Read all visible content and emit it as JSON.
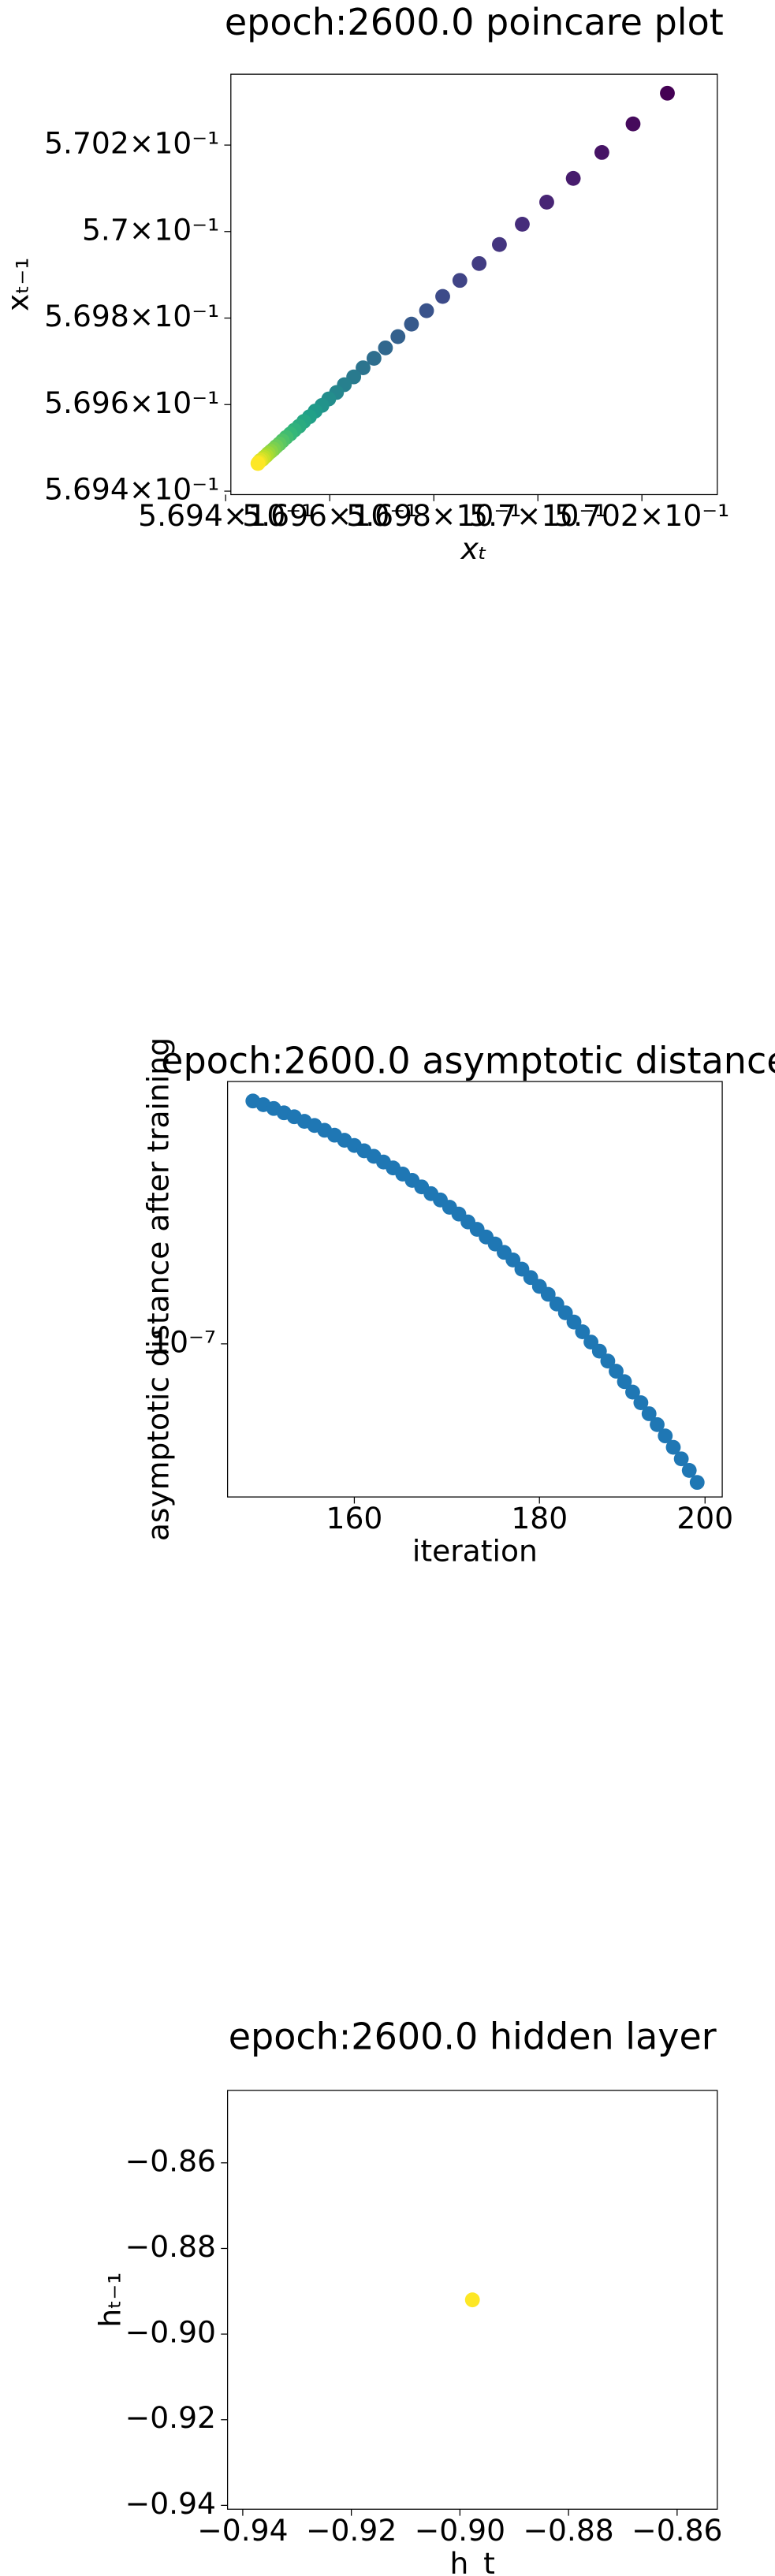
{
  "chart_data": [
    {
      "type": "scatter",
      "title": "epoch:2600.0 poincare plot",
      "xlabel": "xₜ",
      "ylabel": "xₜ₋₁",
      "log_scale": true,
      "colormap": "viridis",
      "x": [
        0.570249,
        0.570183,
        0.570123,
        0.570068,
        0.570017,
        0.56997,
        0.569926,
        0.569887,
        0.56985,
        0.569817,
        0.569786,
        0.569757,
        0.569731,
        0.569707,
        0.569685,
        0.569664,
        0.569646,
        0.569628,
        0.569613,
        0.569598,
        0.569585,
        0.569572,
        0.569561,
        0.56955,
        0.569541,
        0.569532,
        0.569524,
        0.569516,
        0.569509,
        0.569503,
        0.569497,
        0.569492,
        0.569487,
        0.569482,
        0.569478,
        0.569474,
        0.569471,
        0.569467,
        0.569464,
        0.569462
      ],
      "y": [
        0.57032,
        0.570249,
        0.570183,
        0.570123,
        0.570068,
        0.570017,
        0.56997,
        0.569926,
        0.569887,
        0.56985,
        0.569817,
        0.569786,
        0.569757,
        0.569731,
        0.569707,
        0.569685,
        0.569664,
        0.569646,
        0.569628,
        0.569613,
        0.569598,
        0.569585,
        0.569572,
        0.569561,
        0.56955,
        0.569541,
        0.569532,
        0.569524,
        0.569516,
        0.569509,
        0.569503,
        0.569497,
        0.569492,
        0.569487,
        0.569482,
        0.569478,
        0.569474,
        0.569471,
        0.569467,
        0.569464
      ],
      "xlim": [
        0.56941,
        0.570345
      ],
      "ylim": [
        0.569392,
        0.570364
      ],
      "xticks": [
        {
          "value": 0.5694,
          "label": "5.694×10⁻¹"
        },
        {
          "value": 0.5696,
          "label": "5.696×10⁻¹"
        },
        {
          "value": 0.5698,
          "label": "5.698×10⁻¹"
        },
        {
          "value": 0.57,
          "label": "5.7×10⁻¹"
        },
        {
          "value": 0.5702,
          "label": "5.702×10⁻¹"
        }
      ],
      "yticks": [
        {
          "value": 0.5694,
          "label": "5.694×10⁻¹"
        },
        {
          "value": 0.5696,
          "label": "5.696×10⁻¹"
        },
        {
          "value": 0.5698,
          "label": "5.698×10⁻¹"
        },
        {
          "value": 0.57,
          "label": "5.7×10⁻¹"
        },
        {
          "value": 0.5702,
          "label": "5.702×10⁻¹"
        }
      ]
    },
    {
      "type": "scatter",
      "title": "epoch:2600.0 asymptotic distance",
      "xlabel": "iteration",
      "ylabel": "asymptotic distance after training",
      "log_scale": true,
      "color": "#1f77b4",
      "x": [
        150,
        151,
        152,
        153,
        154,
        155,
        156,
        157,
        158,
        159,
        160,
        161,
        162,
        163,
        164,
        165,
        166,
        167,
        168,
        169,
        170,
        171,
        172,
        173,
        174,
        175,
        176,
        177,
        178,
        179,
        180,
        181,
        182,
        183,
        184,
        185,
        186,
        187,
        188,
        189,
        190,
        191,
        192,
        193,
        194,
        195,
        196,
        197,
        198,
        199
      ],
      "y": [
        3.9e-07,
        3.82e-07,
        3.74e-07,
        3.65e-07,
        3.57e-07,
        3.48e-07,
        3.4e-07,
        3.31e-07,
        3.22e-07,
        3.13e-07,
        3.04e-07,
        2.95e-07,
        2.86e-07,
        2.77e-07,
        2.68e-07,
        2.59e-07,
        2.5e-07,
        2.41e-07,
        2.32e-07,
        2.24e-07,
        2.15e-07,
        2.07e-07,
        1.98e-07,
        1.9e-07,
        1.82e-07,
        1.75e-07,
        1.67e-07,
        1.6e-07,
        1.52e-07,
        1.45e-07,
        1.38e-07,
        1.32e-07,
        1.25e-07,
        1.19e-07,
        1.13e-07,
        1.07e-07,
        1.01e-07,
        9.6e-08,
        9.08e-08,
        8.58e-08,
        8.09e-08,
        7.63e-08,
        7.19e-08,
        6.76e-08,
        6.36e-08,
        5.97e-08,
        5.6e-08,
        5.25e-08,
        4.92e-08,
        4.6e-08
      ],
      "xlim": [
        147.6,
        202.2
      ],
      "ylim": [
        4.24e-08,
        4.35e-07
      ],
      "xticks": [
        160,
        180,
        200
      ],
      "yticks": [
        {
          "value": 1e-07,
          "label": "10⁻⁷"
        }
      ]
    },
    {
      "type": "scatter",
      "title": "epoch:2600.0 hidden layer",
      "xlabel": "h_t",
      "ylabel": "hₜ₋₁",
      "log_scale": false,
      "color": "#fde725",
      "x": [
        -0.8977
      ],
      "y": [
        -0.892
      ],
      "xlim": [
        -0.9428,
        -0.8526
      ],
      "ylim": [
        -0.9409,
        -0.8431
      ],
      "xticks": [
        {
          "value": -0.94,
          "label": "−0.94"
        },
        {
          "value": -0.92,
          "label": "−0.92"
        },
        {
          "value": -0.9,
          "label": "−0.90"
        },
        {
          "value": -0.88,
          "label": "−0.88"
        },
        {
          "value": -0.86,
          "label": "−0.86"
        }
      ],
      "yticks": [
        {
          "value": -0.94,
          "label": "−0.94"
        },
        {
          "value": -0.92,
          "label": "−0.92"
        },
        {
          "value": -0.9,
          "label": "−0.90"
        },
        {
          "value": -0.88,
          "label": "−0.88"
        },
        {
          "value": -0.86,
          "label": "−0.86"
        }
      ]
    }
  ]
}
